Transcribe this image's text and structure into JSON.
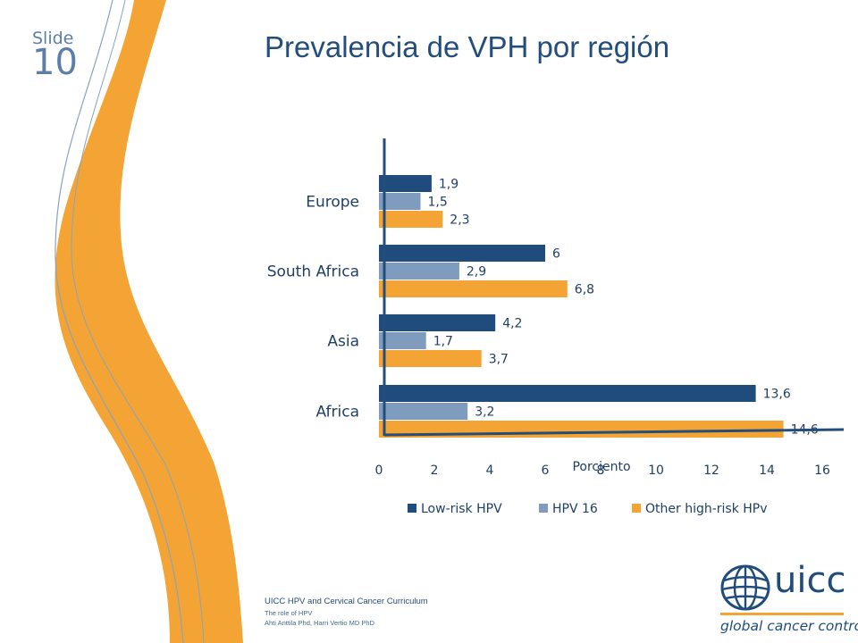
{
  "slide": {
    "label": "Slide",
    "number": "10"
  },
  "title": "Prevalencia de VPH por región",
  "colors": {
    "low_risk": "#1f4c7c",
    "hpv16": "#7f9bbd",
    "other_high": "#f4a434",
    "accent": "#f4a434",
    "text": "#234e7c"
  },
  "chart_data": {
    "type": "bar",
    "orientation": "horizontal",
    "categories": [
      "Europe",
      "South Africa",
      "Asia",
      "Africa"
    ],
    "series": [
      {
        "name": "Low-risk HPV",
        "values": [
          1.9,
          6,
          4.2,
          13.6
        ],
        "labels": [
          "1,9",
          "6",
          "4,2",
          "13,6"
        ]
      },
      {
        "name": "HPV 16",
        "values": [
          1.5,
          2.9,
          1.7,
          3.2
        ],
        "labels": [
          "1,5",
          "2,9",
          "1,7",
          "3,2"
        ]
      },
      {
        "name": "Other high-risk HPv",
        "values": [
          2.3,
          6.8,
          3.7,
          14.6
        ],
        "labels": [
          "2,3",
          "6,8",
          "3,7",
          "14,6"
        ]
      }
    ],
    "xlabel": "Porciento",
    "xlim": [
      0,
      16
    ],
    "xticks": [
      "0",
      "2",
      "4",
      "6",
      "8",
      "10",
      "12",
      "14",
      "16"
    ],
    "legend": "bottom",
    "grid": false
  },
  "footer": {
    "line1": "UICC HPV and Cervical Cancer Curriculum",
    "line2": "The role of HPV",
    "line3": "Ahti Anttila Phd, Harri Vertio MD PhD"
  },
  "logo": {
    "word": "uicc",
    "tagline": "global cancer control"
  }
}
